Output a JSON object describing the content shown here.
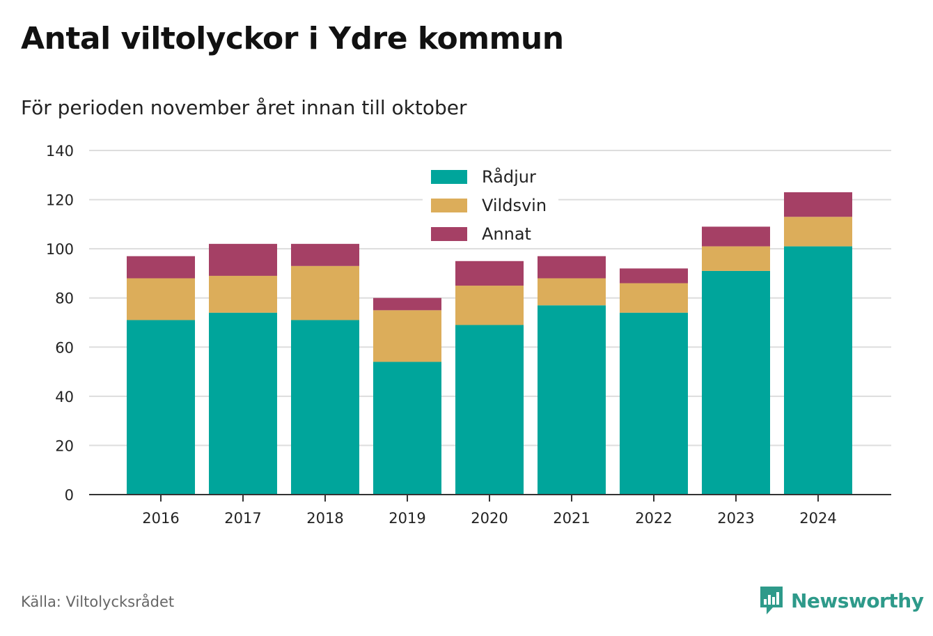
{
  "title": "Antal viltolyckor i Ydre kommun",
  "subtitle": "För perioden november året innan till oktober",
  "source": "Källa: Viltolycksrådet",
  "brand": {
    "name": "Newsworthy",
    "icon": "chart-speech-bubble-icon",
    "color": "#2e9a8a"
  },
  "chart_data": {
    "type": "bar",
    "stacked": true,
    "categories": [
      "2016",
      "2017",
      "2018",
      "2019",
      "2020",
      "2021",
      "2022",
      "2023",
      "2024"
    ],
    "series": [
      {
        "name": "Rådjur",
        "color": "#00a59b",
        "values": [
          71,
          74,
          71,
          54,
          69,
          77,
          74,
          91,
          101
        ]
      },
      {
        "name": "Vildsvin",
        "color": "#dcad5a",
        "values": [
          17,
          15,
          22,
          21,
          16,
          11,
          12,
          10,
          12
        ]
      },
      {
        "name": "Annat",
        "color": "#a54065",
        "values": [
          9,
          13,
          9,
          5,
          10,
          9,
          6,
          8,
          10
        ]
      }
    ],
    "ylim": [
      0,
      140
    ],
    "yticks": [
      0,
      20,
      40,
      60,
      80,
      100,
      120,
      140
    ],
    "grid": true,
    "legend_position": "top-center",
    "xlabel": "",
    "ylabel": ""
  }
}
